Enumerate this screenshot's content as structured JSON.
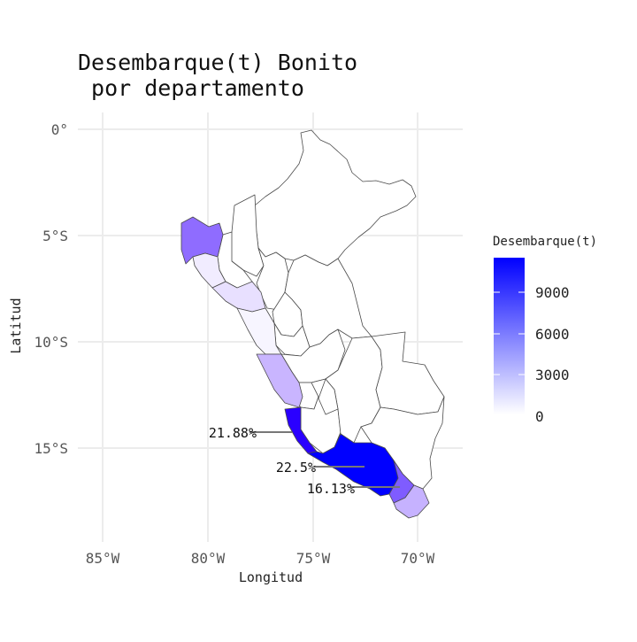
{
  "title_line1": "Desembarque(t) Bonito",
  "title_line2": " por departamento",
  "axes": {
    "xlabel": "Longitud",
    "ylabel": "Latitud",
    "x_ticks": [
      "85°W",
      "80°W",
      "75°W",
      "70°W"
    ],
    "y_ticks": [
      "0°",
      "5°S",
      "10°S",
      "15°S"
    ]
  },
  "legend": {
    "title": "Desembarque(t)",
    "ticks": [
      "9000",
      "6000",
      "3000",
      "0"
    ],
    "color_low": "#ffffff",
    "color_high": "#0000ff",
    "range": [
      0,
      11500
    ]
  },
  "labels": [
    "21.88%",
    "22.5%",
    "16.13%"
  ],
  "map_colors": {
    "border": "#4a4a4a",
    "zero": "#ffffff",
    "piura": "#f1ecff",
    "tumbes": "#8f6cff",
    "lalibertad": "#e8e0ff",
    "ancash": "#f7f5ff",
    "lima": "#c9b5ff",
    "ica": "#2a00ff",
    "arequipa": "#0000ff",
    "moquegua": "#7f5cff",
    "tacna": "#c6b2ff",
    "grid": "#ececec"
  }
}
